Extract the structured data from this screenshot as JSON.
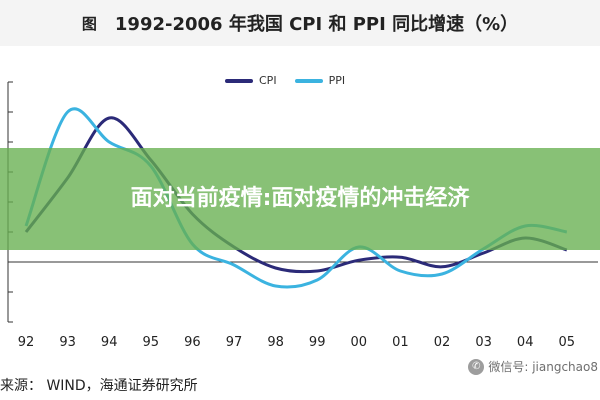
{
  "header": {
    "prefix": "图",
    "title": "1992-2006 年我国 CPI 和 PPI 同比增速（%）"
  },
  "overlay": {
    "text": "面对当前疫情:面对疫情的冲击经济"
  },
  "source": "来源： WIND，海通证券研究所",
  "watermark": {
    "icon": "wechat-icon",
    "text": "微信号: jiangchao8"
  },
  "colors": {
    "cpi": "#2b2a78",
    "ppi": "#3bb3e0",
    "overlay": "#66b050"
  },
  "chart_data": {
    "type": "line",
    "title": "1992-2006 年我国 CPI 和 PPI 同比增速（%）",
    "xlabel": "",
    "ylabel": "",
    "x": [
      "92",
      "93",
      "94",
      "95",
      "96",
      "97",
      "98",
      "99",
      "00",
      "01",
      "02",
      "03",
      "04",
      "05"
    ],
    "ylim": [
      -10,
      30
    ],
    "grid": false,
    "legend": "top-center",
    "series": [
      {
        "name": "CPI",
        "values": [
          5,
          14,
          24,
          17,
          8,
          2.5,
          -1,
          -1.5,
          0.3,
          0.8,
          -0.8,
          1.5,
          4,
          2
        ]
      },
      {
        "name": "PPI",
        "values": [
          6,
          25,
          20,
          16,
          3,
          -0.5,
          -4,
          -3,
          2.5,
          -1.5,
          -2,
          2.2,
          6,
          5
        ]
      }
    ]
  }
}
